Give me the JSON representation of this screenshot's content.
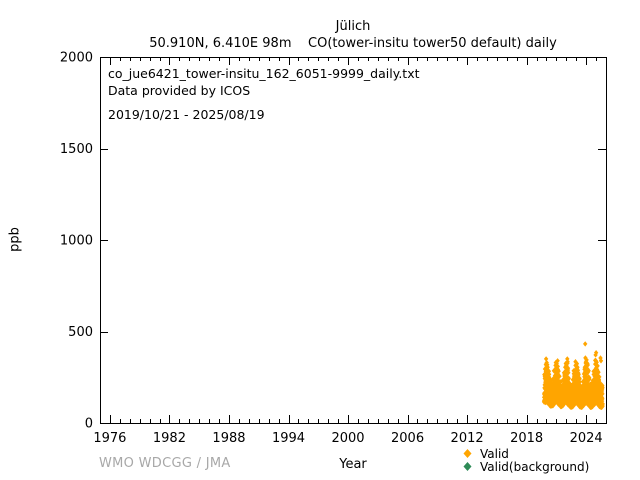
{
  "header": {
    "title": "Jülich",
    "subtitle": "50.910N, 6.410E 98m    CO(tower-insitu tower50 default) daily"
  },
  "annotation": {
    "file_name": "co_jue6421_tower-insitu_162_6051-9999_daily.txt",
    "provider": "Data provided by ICOS",
    "date_range": "2019/10/21 - 2025/08/19"
  },
  "footer": {
    "credit": "WMO WDCGG / JMA",
    "credit_color": "#a8a8a8"
  },
  "chart_data": {
    "type": "scatter",
    "title": "Jülich",
    "subtitle": "50.910N, 6.410E 98m    CO(tower-insitu tower50 default) daily",
    "xlabel": "Year",
    "ylabel": "ppb",
    "xlim": [
      1975,
      2026
    ],
    "ylim": [
      0,
      2000
    ],
    "xticks_major": [
      1976,
      1982,
      1988,
      1994,
      2000,
      2006,
      2012,
      2018,
      2024
    ],
    "xticks_minor_interval": 1,
    "yticks": [
      0,
      500,
      1000,
      1500,
      2000
    ],
    "grid": false,
    "legend_position": "bottom-right-below-axis",
    "legend": [
      {
        "label": "Valid",
        "color": "#ffa500",
        "marker": "diamond"
      },
      {
        "label": "Valid(background)",
        "color": "#2e8b57",
        "marker": "diamond"
      }
    ],
    "series": [
      {
        "name": "Valid",
        "color": "#ffa500",
        "marker": "diamond",
        "encoding": "daily CO values summarized as monthly envelopes [year_center, min_ppb, max_ppb, n_days]",
        "monthly_envelope": [
          [
            2019.79,
            115,
            265,
            11
          ],
          [
            2019.88,
            110,
            295,
            30
          ],
          [
            2019.96,
            115,
            320,
            31
          ],
          [
            2020.04,
            115,
            330,
            31
          ],
          [
            2020.13,
            110,
            305,
            29
          ],
          [
            2020.21,
            105,
            285,
            31
          ],
          [
            2020.29,
            100,
            265,
            30
          ],
          [
            2020.38,
            95,
            235,
            31
          ],
          [
            2020.46,
            92,
            205,
            30
          ],
          [
            2020.54,
            95,
            195,
            31
          ],
          [
            2020.63,
            95,
            215,
            31
          ],
          [
            2020.71,
            100,
            245,
            30
          ],
          [
            2020.79,
            105,
            285,
            31
          ],
          [
            2020.88,
            110,
            315,
            30
          ],
          [
            2020.96,
            115,
            330,
            31
          ],
          [
            2021.04,
            115,
            325,
            31
          ],
          [
            2021.13,
            110,
            340,
            28
          ],
          [
            2021.21,
            105,
            285,
            31
          ],
          [
            2021.29,
            100,
            255,
            30
          ],
          [
            2021.38,
            95,
            225,
            31
          ],
          [
            2021.46,
            90,
            195,
            30
          ],
          [
            2021.54,
            90,
            188,
            31
          ],
          [
            2021.63,
            95,
            205,
            31
          ],
          [
            2021.71,
            100,
            235,
            30
          ],
          [
            2021.79,
            105,
            275,
            31
          ],
          [
            2021.88,
            110,
            305,
            30
          ],
          [
            2021.96,
            112,
            325,
            31
          ],
          [
            2022.04,
            110,
            315,
            31
          ],
          [
            2022.13,
            105,
            335,
            28
          ],
          [
            2022.21,
            100,
            275,
            31
          ],
          [
            2022.29,
            95,
            245,
            30
          ],
          [
            2022.38,
            90,
            215,
            31
          ],
          [
            2022.46,
            87,
            188,
            30
          ],
          [
            2022.54,
            87,
            182,
            31
          ],
          [
            2022.63,
            90,
            205,
            31
          ],
          [
            2022.71,
            95,
            238,
            30
          ],
          [
            2022.79,
            100,
            285,
            31
          ],
          [
            2022.88,
            105,
            315,
            30
          ],
          [
            2022.96,
            110,
            335,
            31
          ],
          [
            2023.04,
            110,
            325,
            31
          ],
          [
            2023.13,
            105,
            305,
            28
          ],
          [
            2023.21,
            100,
            275,
            31
          ],
          [
            2023.29,
            95,
            245,
            30
          ],
          [
            2023.38,
            90,
            208,
            31
          ],
          [
            2023.46,
            86,
            182,
            30
          ],
          [
            2023.54,
            86,
            182,
            31
          ],
          [
            2023.63,
            90,
            198,
            31
          ],
          [
            2023.71,
            95,
            228,
            30
          ],
          [
            2023.79,
            100,
            268,
            31
          ],
          [
            2023.88,
            105,
            305,
            30
          ],
          [
            2023.96,
            110,
            335,
            31
          ],
          [
            2024.04,
            110,
            345,
            31
          ],
          [
            2024.13,
            105,
            325,
            29
          ],
          [
            2024.21,
            100,
            285,
            31
          ],
          [
            2024.29,
            95,
            248,
            30
          ],
          [
            2024.38,
            90,
            212,
            31
          ],
          [
            2024.46,
            86,
            188,
            30
          ],
          [
            2024.54,
            86,
            182,
            31
          ],
          [
            2024.63,
            90,
            202,
            31
          ],
          [
            2024.71,
            95,
            232,
            30
          ],
          [
            2024.79,
            100,
            282,
            31
          ],
          [
            2024.88,
            105,
            322,
            30
          ],
          [
            2024.96,
            110,
            342,
            31
          ],
          [
            2025.04,
            110,
            332,
            31
          ],
          [
            2025.13,
            105,
            312,
            28
          ],
          [
            2025.21,
            100,
            282,
            31
          ],
          [
            2025.29,
            95,
            252,
            30
          ],
          [
            2025.38,
            90,
            218,
            31
          ],
          [
            2025.46,
            86,
            192,
            30
          ],
          [
            2025.54,
            86,
            188,
            31
          ],
          [
            2025.62,
            90,
            205,
            19
          ]
        ],
        "outlier_points": [
          [
            2019.96,
            350
          ],
          [
            2019.96,
            322
          ],
          [
            2021.02,
            307
          ],
          [
            2022.1,
            350
          ],
          [
            2023.9,
            432
          ],
          [
            2023.92,
            356
          ],
          [
            2024.04,
            345
          ],
          [
            2024.95,
            372
          ],
          [
            2025.0,
            384
          ],
          [
            2025.45,
            355
          ],
          [
            2025.5,
            340
          ]
        ]
      },
      {
        "name": "Valid(background)",
        "color": "#2e8b57",
        "marker": "diamond",
        "points": []
      }
    ]
  }
}
